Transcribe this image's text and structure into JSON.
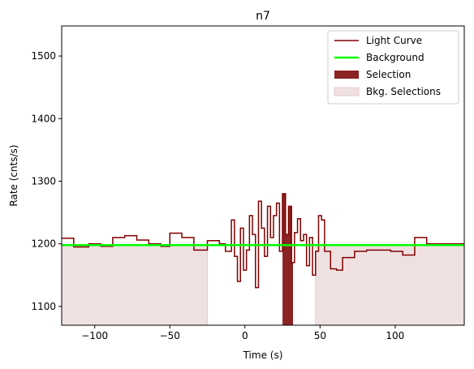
{
  "chart_data": {
    "type": "line",
    "title": "n7",
    "xlabel": "Time (s)",
    "ylabel": "Rate (cnts/s)",
    "xlim": [
      -122,
      146
    ],
    "ylim": [
      1070,
      1548
    ],
    "xticks": [
      -100,
      -50,
      0,
      50,
      100
    ],
    "yticks": [
      1100,
      1200,
      1300,
      1400,
      1500
    ],
    "grid": false,
    "legend_position": "top-right",
    "colors": {
      "light_curve": "#800000",
      "background": "#00ff00",
      "selection": "#8b2323",
      "bkg_selection": "#efe1e1",
      "bkg_selection_edge": "#e6cccc"
    },
    "legend": [
      {
        "label": "Light Curve",
        "kind": "line",
        "color": "#800000"
      },
      {
        "label": "Background",
        "kind": "line",
        "color": "#00ff00"
      },
      {
        "label": "Selection",
        "kind": "patch",
        "color": "#8b2323"
      },
      {
        "label": "Bkg. Selections",
        "kind": "patch",
        "color": "#efe1e1"
      }
    ],
    "background_level": 1198,
    "light_curve": {
      "edges": [
        -122,
        -114,
        -104,
        -96,
        -88,
        -80,
        -72,
        -64,
        -56,
        -50,
        -42,
        -34,
        -25,
        -17,
        -13,
        -9,
        -7,
        -5,
        -3,
        -1,
        1,
        3,
        5,
        7,
        9,
        11,
        13,
        15,
        17,
        19,
        21,
        23,
        25,
        27,
        29,
        31,
        33,
        35,
        37,
        39,
        41,
        43,
        45,
        47,
        49,
        51,
        53,
        57,
        61,
        65,
        73,
        81,
        89,
        97,
        105,
        113,
        121,
        129,
        137,
        146
      ],
      "values": [
        1209,
        1195,
        1200,
        1196,
        1210,
        1213,
        1206,
        1200,
        1196,
        1217,
        1210,
        1190,
        1205,
        1200,
        1188,
        1238,
        1180,
        1140,
        1225,
        1158,
        1190,
        1245,
        1215,
        1130,
        1268,
        1225,
        1180,
        1260,
        1210,
        1245,
        1265,
        1188,
        1280,
        1215,
        1260,
        1170,
        1218,
        1240,
        1205,
        1215,
        1165,
        1210,
        1150,
        1188,
        1245,
        1238,
        1188,
        1160,
        1158,
        1178,
        1188,
        1190,
        1190,
        1188,
        1182,
        1210,
        1200,
        1200,
        1200
      ]
    },
    "selection": [
      [
        25,
        32
      ]
    ],
    "bkg_selections": [
      [
        -122,
        -25
      ],
      [
        47,
        146
      ]
    ]
  }
}
